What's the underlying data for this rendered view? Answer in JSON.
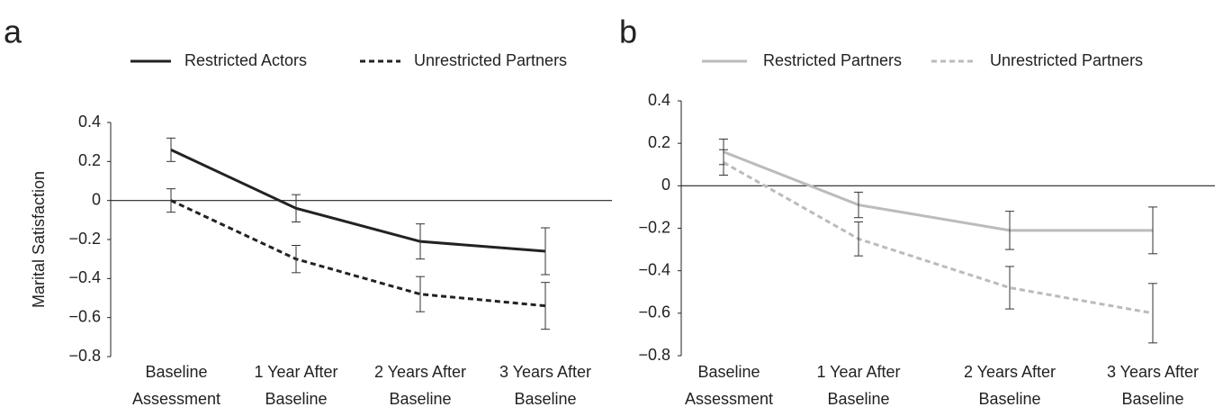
{
  "chart_data": [
    {
      "type": "line",
      "panel_label": "a",
      "ylabel": "Marital Satisfaction",
      "categories": [
        [
          "Baseline",
          "Assessment"
        ],
        [
          "1 Year After",
          "Baseline"
        ],
        [
          "2 Years After",
          "Baseline"
        ],
        [
          "3 Years After",
          "Baseline"
        ]
      ],
      "series": [
        {
          "name": "Restricted Actors",
          "color": "#222222",
          "style": "solid",
          "values": [
            0.26,
            -0.04,
            -0.21,
            -0.26
          ],
          "errors": [
            0.06,
            0.07,
            0.09,
            0.12
          ]
        },
        {
          "name": "Unrestricted Partners",
          "color": "#222222",
          "style": "dashed",
          "values": [
            0.0,
            -0.3,
            -0.48,
            -0.54
          ],
          "errors": [
            0.06,
            0.07,
            0.09,
            0.12
          ]
        }
      ],
      "ylim": [
        -0.8,
        0.4
      ],
      "yticks": [
        0.4,
        0.2,
        0,
        {
          "value": -0.2,
          "label": "−0.2"
        },
        {
          "value": -0.4,
          "label": "−0.4"
        },
        {
          "value": -0.6,
          "label": "−0.6"
        },
        {
          "value": -0.8,
          "label": "−0.8"
        }
      ]
    },
    {
      "type": "line",
      "panel_label": "b",
      "categories": [
        [
          "Baseline",
          "Assessment"
        ],
        [
          "1 Year After",
          "Baseline"
        ],
        [
          "2 Years After",
          "Baseline"
        ],
        [
          "3 Years After",
          "Baseline"
        ]
      ],
      "series": [
        {
          "name": "Restricted Partners",
          "color": "#bbbbbb",
          "style": "solid",
          "values": [
            0.16,
            -0.09,
            -0.21,
            -0.21
          ],
          "errors": [
            0.06,
            0.06,
            0.09,
            0.11
          ]
        },
        {
          "name": "Unrestricted Partners",
          "color": "#bbbbbb",
          "style": "dashed",
          "values": [
            0.11,
            -0.25,
            -0.48,
            -0.6
          ],
          "errors": [
            0.06,
            0.08,
            0.1,
            0.14
          ]
        }
      ],
      "ylim": [
        -0.8,
        0.4
      ],
      "yticks": [
        0.4,
        0.2,
        0,
        {
          "value": -0.2,
          "label": "−0.2"
        },
        {
          "value": -0.4,
          "label": "−0.4"
        },
        {
          "value": -0.6,
          "label": "−0.6"
        },
        {
          "value": -0.8,
          "label": "−0.8"
        }
      ]
    }
  ]
}
